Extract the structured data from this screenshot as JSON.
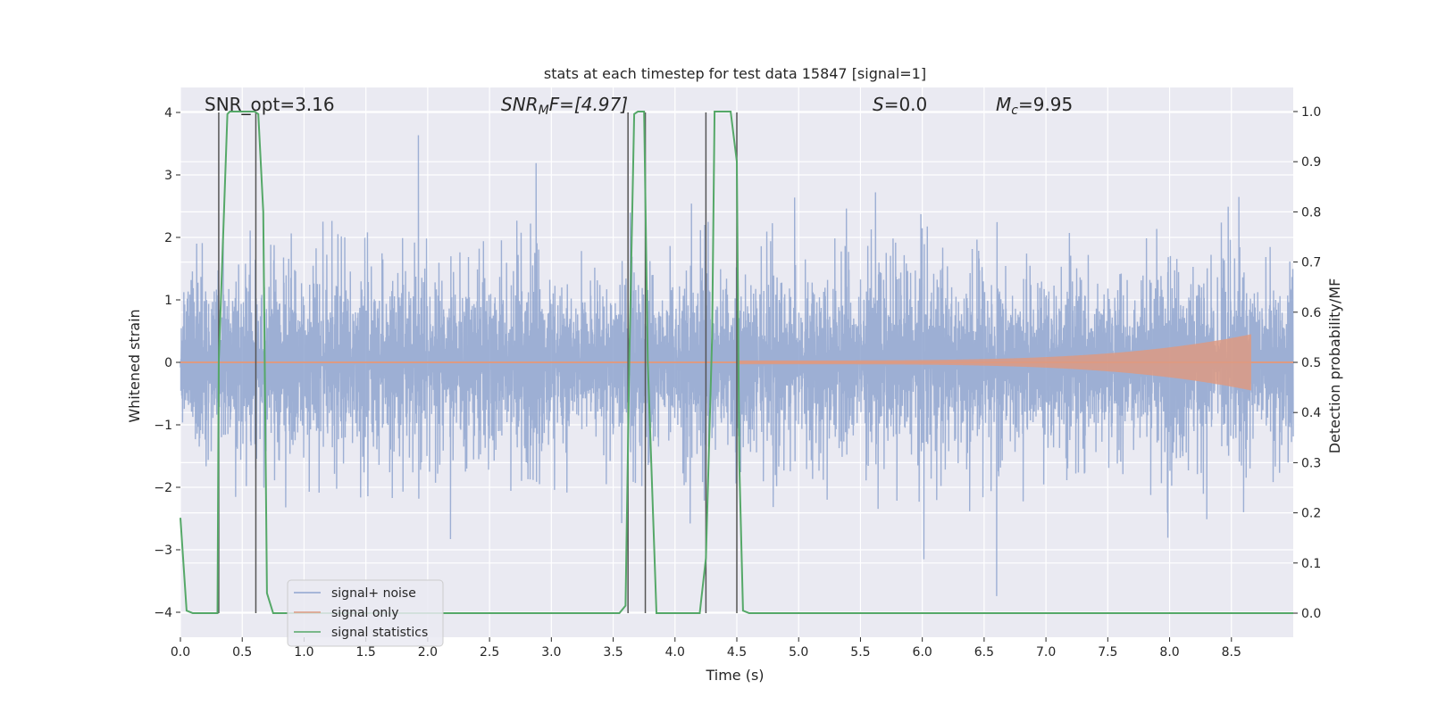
{
  "chart_data": {
    "type": "line",
    "title": "stats at each timestep for test data 15847 [signal=1]",
    "xlabel": "Time (s)",
    "ylabel_left": "Whitened strain",
    "ylabel_right": "Detection probability/MF",
    "xlim": [
      0.0,
      9.0
    ],
    "ylim_left": [
      -4.4,
      4.4
    ],
    "ylim_right": [
      -0.048,
      1.048
    ],
    "x_ticks": [
      "0.0",
      "0.5",
      "1.0",
      "1.5",
      "2.0",
      "2.5",
      "3.0",
      "3.5",
      "4.0",
      "4.5",
      "5.0",
      "5.5",
      "6.0",
      "6.5",
      "7.0",
      "7.5",
      "8.0",
      "8.5"
    ],
    "y_ticks_left": [
      "4",
      "3",
      "2",
      "1",
      "0",
      "−1",
      "−2",
      "−3",
      "−4"
    ],
    "y_ticks_right": [
      "1.0",
      "0.9",
      "0.8",
      "0.7",
      "0.6",
      "0.5",
      "0.4",
      "0.3",
      "0.2",
      "0.1",
      "0.0"
    ],
    "annotations": {
      "snr_opt": "SNR_opt=3.16",
      "snr_mf_base": "SNR",
      "snr_mf_sub": "M",
      "snr_mf_rest": "F=[4.97]",
      "s_base": "S",
      "s_rest": "=0.0",
      "mc_base": "M",
      "mc_sub": "c",
      "mc_rest": "=9.95"
    },
    "grid": true,
    "legend_position": "lower-left",
    "series": [
      {
        "name": "signal+ noise",
        "color": "#8fa5cf",
        "note_values": "dense whitened noise, amplitude approx ±2.5, spikes to ±4"
      },
      {
        "name": "signal only",
        "color": "#dd9a82",
        "chirp_end_s": 8.66,
        "chirp_peak_amplitude": 0.45
      },
      {
        "name": "signal statistics",
        "color": "#55a868",
        "x": [
          0.0,
          0.05,
          0.1,
          0.3,
          0.31,
          0.38,
          0.4,
          0.6,
          0.63,
          0.67,
          0.7,
          0.75,
          0.8,
          3.55,
          3.6,
          3.63,
          3.67,
          3.7,
          3.75,
          3.78,
          3.85,
          3.9,
          4.2,
          4.25,
          4.3,
          4.32,
          4.45,
          4.5,
          4.52,
          4.55,
          4.6,
          9.0
        ],
        "values": [
          0.19,
          0.005,
          0.0,
          0.0,
          0.5,
          0.995,
          1.0,
          1.0,
          0.995,
          0.8,
          0.04,
          0.0,
          0.0,
          0.0,
          0.015,
          0.5,
          0.995,
          1.0,
          1.0,
          0.5,
          0.0,
          0.0,
          0.0,
          0.11,
          0.55,
          1.0,
          1.0,
          0.9,
          0.3,
          0.005,
          0.0,
          0.0
        ]
      }
    ],
    "vertical_markers_s": [
      0.31,
      0.61,
      3.62,
      3.76,
      4.25,
      4.5
    ]
  }
}
